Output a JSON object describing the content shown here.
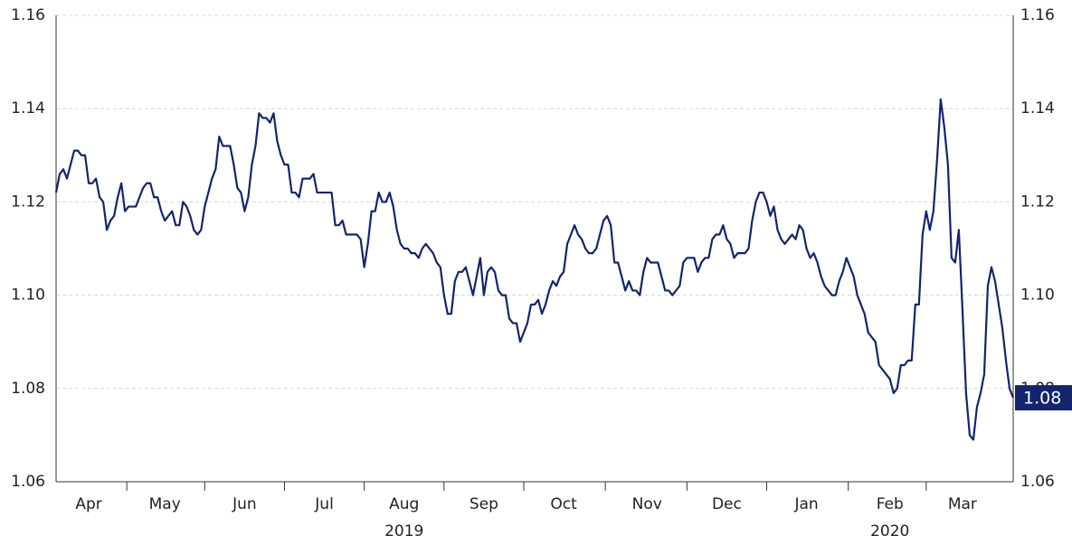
{
  "chart_data": {
    "type": "line",
    "color": "#14246e",
    "grid": true,
    "ylim": [
      1.06,
      1.16
    ],
    "yticks": [
      1.06,
      1.08,
      {
        "value": 1.1,
        "label": "1.10"
      },
      1.12,
      1.14,
      1.16
    ],
    "y_axis_sides": [
      "left",
      "right"
    ],
    "end_label": "1.08",
    "year_labels": [
      {
        "label": "2019",
        "month": "Aug"
      },
      {
        "label": "2020",
        "month": "Feb"
      }
    ],
    "categories": [
      null,
      null,
      null,
      null,
      null,
      null,
      null,
      null,
      null,
      "Apr",
      null,
      null,
      null,
      null,
      null,
      null,
      null,
      null,
      null,
      null,
      null,
      null,
      null,
      null,
      null,
      null,
      null,
      null,
      null,
      null,
      "May",
      null,
      null,
      null,
      null,
      null,
      null,
      null,
      null,
      null,
      null,
      null,
      null,
      null,
      null,
      null,
      null,
      null,
      null,
      null,
      null,
      null,
      "Jun",
      null,
      null,
      null,
      null,
      null,
      null,
      null,
      null,
      null,
      null,
      null,
      null,
      null,
      null,
      null,
      null,
      null,
      null,
      null,
      null,
      null,
      "Jul",
      null,
      null,
      null,
      null,
      null,
      null,
      null,
      null,
      null,
      null,
      null,
      null,
      null,
      null,
      null,
      null,
      null,
      null,
      null,
      null,
      null,
      "Aug",
      null,
      null,
      null,
      null,
      null,
      null,
      null,
      null,
      null,
      null,
      null,
      null,
      null,
      null,
      null,
      null,
      null,
      null,
      null,
      null,
      null,
      "Sep",
      null,
      null,
      null,
      null,
      null,
      null,
      null,
      null,
      null,
      null,
      null,
      null,
      null,
      null,
      null,
      null,
      null,
      null,
      null,
      null,
      null,
      "Oct",
      null,
      null,
      null,
      null,
      null,
      null,
      null,
      null,
      null,
      null,
      null,
      null,
      null,
      null,
      null,
      null,
      null,
      null,
      null,
      null,
      null,
      null,
      "Nov",
      null,
      null,
      null,
      null,
      null,
      null,
      null,
      null,
      null,
      null,
      null,
      null,
      null,
      null,
      null,
      null,
      null,
      null,
      null,
      null,
      null,
      "Dec",
      null,
      null,
      null,
      null,
      null,
      null,
      null,
      null,
      null,
      null,
      null,
      null,
      null,
      null,
      null,
      null,
      null,
      null,
      null,
      null,
      null,
      "Jan",
      null,
      null,
      null,
      null,
      null,
      null,
      null,
      null,
      null,
      null,
      null,
      null,
      null,
      null,
      null,
      null,
      null,
      null,
      null,
      null,
      null,
      null,
      "Feb",
      null,
      null,
      null,
      null,
      null,
      null,
      null,
      null,
      null,
      null,
      null,
      null,
      null,
      null,
      null,
      null,
      null,
      null,
      null,
      "Mar",
      null,
      null,
      null,
      null,
      null,
      null,
      null,
      null,
      null,
      null,
      null,
      null,
      null,
      null
    ],
    "values": [
      1.122,
      1.126,
      1.127,
      1.125,
      1.128,
      1.131,
      1.131,
      1.13,
      1.13,
      1.124,
      1.124,
      1.125,
      1.121,
      1.12,
      1.114,
      1.116,
      1.117,
      1.121,
      1.124,
      1.118,
      1.119,
      1.119,
      1.119,
      1.121,
      1.123,
      1.124,
      1.124,
      1.121,
      1.121,
      1.118,
      1.116,
      1.117,
      1.118,
      1.115,
      1.115,
      1.12,
      1.119,
      1.117,
      1.114,
      1.113,
      1.114,
      1.119,
      1.122,
      1.125,
      1.127,
      1.134,
      1.132,
      1.132,
      1.132,
      1.128,
      1.123,
      1.122,
      1.118,
      1.121,
      1.128,
      1.132,
      1.139,
      1.138,
      1.138,
      1.137,
      1.139,
      1.133,
      1.13,
      1.128,
      1.128,
      1.122,
      1.122,
      1.121,
      1.125,
      1.125,
      1.125,
      1.126,
      1.122,
      1.122,
      1.122,
      1.122,
      1.122,
      1.115,
      1.115,
      1.116,
      1.113,
      1.113,
      1.113,
      1.113,
      1.112,
      1.106,
      1.111,
      1.118,
      1.118,
      1.122,
      1.12,
      1.12,
      1.122,
      1.119,
      1.114,
      1.111,
      1.11,
      1.11,
      1.109,
      1.109,
      1.108,
      1.11,
      1.111,
      1.11,
      1.109,
      1.107,
      1.106,
      1.1,
      1.096,
      1.096,
      1.103,
      1.105,
      1.105,
      1.106,
      1.103,
      1.1,
      1.104,
      1.108,
      1.1,
      1.105,
      1.106,
      1.105,
      1.101,
      1.1,
      1.1,
      1.095,
      1.094,
      1.094,
      1.09,
      1.092,
      1.094,
      1.098,
      1.098,
      1.099,
      1.096,
      1.098,
      1.101,
      1.103,
      1.102,
      1.104,
      1.105,
      1.111,
      1.113,
      1.115,
      1.113,
      1.112,
      1.11,
      1.109,
      1.109,
      1.11,
      1.113,
      1.116,
      1.117,
      1.115,
      1.107,
      1.107,
      1.104,
      1.101,
      1.103,
      1.101,
      1.101,
      1.1,
      1.105,
      1.108,
      1.107,
      1.107,
      1.107,
      1.104,
      1.101,
      1.101,
      1.1,
      1.101,
      1.102,
      1.107,
      1.108,
      1.108,
      1.108,
      1.105,
      1.107,
      1.108,
      1.108,
      1.112,
      1.113,
      1.113,
      1.115,
      1.112,
      1.111,
      1.108,
      1.109,
      1.109,
      1.109,
      1.11,
      1.116,
      1.12,
      1.122,
      1.122,
      1.12,
      1.117,
      1.119,
      1.114,
      1.112,
      1.111,
      1.112,
      1.113,
      1.112,
      1.115,
      1.114,
      1.11,
      1.108,
      1.109,
      1.107,
      1.104,
      1.102,
      1.101,
      1.1,
      1.1,
      1.103,
      1.105,
      1.108,
      1.106,
      1.104,
      1.1,
      1.098,
      1.096,
      1.092,
      1.091,
      1.09,
      1.085,
      1.084,
      1.083,
      1.082,
      1.079,
      1.08,
      1.085,
      1.085,
      1.086,
      1.086,
      1.098,
      1.098,
      1.113,
      1.118,
      1.114,
      1.118,
      1.129,
      1.142,
      1.136,
      1.128,
      1.108,
      1.107,
      1.114,
      1.097,
      1.079,
      1.07,
      1.069,
      1.076,
      1.079,
      1.083,
      1.102,
      1.106,
      1.103,
      1.098,
      1.093,
      1.086,
      1.08,
      1.078
    ]
  }
}
